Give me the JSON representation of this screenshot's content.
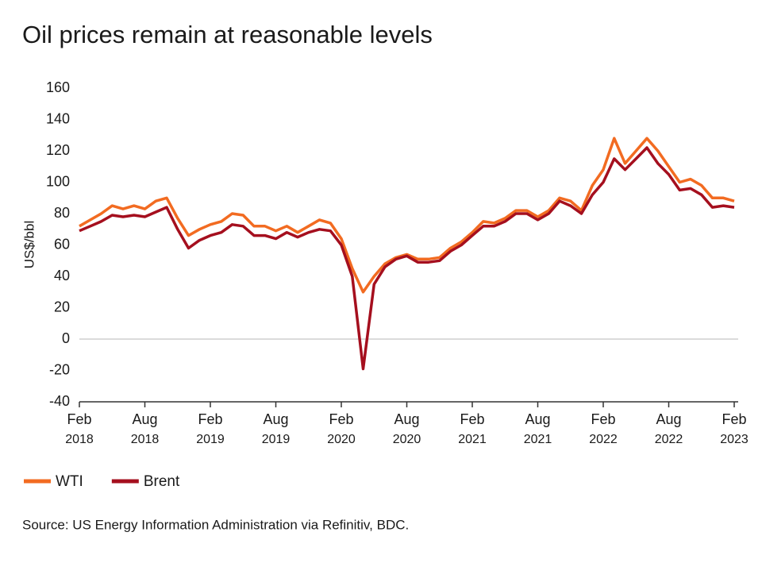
{
  "chart_data": {
    "type": "line",
    "title": "Oil prices remain at reasonable levels",
    "y_label": "US$/bbl",
    "source": "Source: US Energy Information Administration via Refinitiv, BDC.",
    "x": [
      "2018-02",
      "2018-03",
      "2018-04",
      "2018-05",
      "2018-06",
      "2018-07",
      "2018-08",
      "2018-09",
      "2018-10",
      "2018-11",
      "2018-12",
      "2019-01",
      "2019-02",
      "2019-03",
      "2019-04",
      "2019-05",
      "2019-06",
      "2019-07",
      "2019-08",
      "2019-09",
      "2019-10",
      "2019-11",
      "2019-12",
      "2020-01",
      "2020-02",
      "2020-03",
      "2020-04",
      "2020-05",
      "2020-06",
      "2020-07",
      "2020-08",
      "2020-09",
      "2020-10",
      "2020-11",
      "2020-12",
      "2021-01",
      "2021-02",
      "2021-03",
      "2021-04",
      "2021-05",
      "2021-06",
      "2021-07",
      "2021-08",
      "2021-09",
      "2021-10",
      "2021-11",
      "2021-12",
      "2022-01",
      "2022-02",
      "2022-03",
      "2022-04",
      "2022-05",
      "2022-06",
      "2022-07",
      "2022-08",
      "2022-09",
      "2022-10",
      "2022-11",
      "2022-12",
      "2023-01",
      "2023-02"
    ],
    "series": [
      {
        "name": "WTI",
        "color": "#f26b21",
        "values": [
          72,
          76,
          80,
          85,
          83,
          85,
          83,
          88,
          90,
          77,
          66,
          70,
          73,
          75,
          80,
          79,
          72,
          72,
          69,
          72,
          68,
          72,
          76,
          74,
          64,
          45,
          30,
          40,
          48,
          52,
          54,
          51,
          51,
          52,
          58,
          62,
          68,
          75,
          74,
          77,
          82,
          82,
          78,
          82,
          90,
          88,
          82,
          98,
          108,
          128,
          112,
          120,
          128,
          120,
          110,
          100,
          102,
          98,
          90,
          90,
          88
        ]
      },
      {
        "name": "Brent",
        "color": "#a50f1e",
        "values": [
          69,
          72,
          75,
          79,
          78,
          79,
          78,
          81,
          84,
          70,
          58,
          63,
          66,
          68,
          73,
          72,
          66,
          66,
          64,
          68,
          65,
          68,
          70,
          69,
          60,
          40,
          -19,
          35,
          46,
          51,
          53,
          49,
          49,
          50,
          56,
          60,
          66,
          72,
          72,
          75,
          80,
          80,
          76,
          80,
          88,
          85,
          80,
          92,
          100,
          115,
          108,
          115,
          122,
          112,
          105,
          95,
          96,
          92,
          84,
          85,
          84
        ]
      }
    ],
    "xlim": [
      "2018-02",
      "2023-02"
    ],
    "xticks": [
      {
        "value": "2018-02",
        "label": [
          "Feb",
          "2018"
        ]
      },
      {
        "value": "2018-08",
        "label": [
          "Aug",
          "2018"
        ]
      },
      {
        "value": "2019-02",
        "label": [
          "Feb",
          "2019"
        ]
      },
      {
        "value": "2019-08",
        "label": [
          "Aug",
          "2019"
        ]
      },
      {
        "value": "2020-02",
        "label": [
          "Feb",
          "2020"
        ]
      },
      {
        "value": "2020-08",
        "label": [
          "Aug",
          "2020"
        ]
      },
      {
        "value": "2021-02",
        "label": [
          "Feb",
          "2021"
        ]
      },
      {
        "value": "2021-08",
        "label": [
          "Aug",
          "2021"
        ]
      },
      {
        "value": "2022-02",
        "label": [
          "Feb",
          "2022"
        ]
      },
      {
        "value": "2022-08",
        "label": [
          "Aug",
          "2022"
        ]
      },
      {
        "value": "2023-02",
        "label": [
          "Feb",
          "2023"
        ]
      }
    ],
    "ylim": [
      -40,
      160
    ],
    "yticks": [
      -40,
      -20,
      0,
      20,
      40,
      60,
      80,
      100,
      120,
      140,
      160
    ],
    "zero_line": true,
    "legend": "bottom-left"
  }
}
